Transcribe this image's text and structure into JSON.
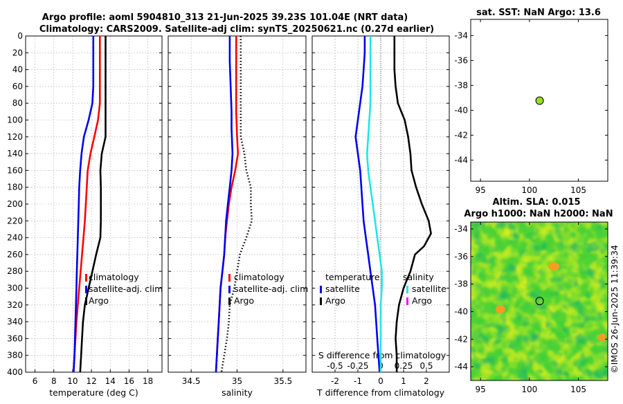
{
  "titles": {
    "line1": "Argo profile: aoml 5904810_313 21-Jun-2025 39.23S 101.04E (NRT data)",
    "line2": "Climatology: CARS2009. Satellite-adj clim: synTS_20250621.nc (0.27d earlier)",
    "sst": "sat. SST: NaN Argo: 13.6",
    "sla": "Altim. SLA: 0.015",
    "h": "Argo h1000: NaN h2000: NaN"
  },
  "credit": "©IMOS 26-Jun-2025 11:39:34",
  "colors": {
    "climatology": "#ff0000",
    "satellite": "#0000ee",
    "argo": "#000000",
    "sal_satellite": "#22e5e5",
    "sal_argo": "#ff00ff",
    "marker": "#99dd22"
  },
  "legend": {
    "climatology": "climatology",
    "satellite_adj": "satellite-adj. clim",
    "argo": "Argo",
    "diff_temp_header": "temperature",
    "diff_sal_header": "salinity",
    "satellite": "satellite",
    "argo2": "Argo"
  },
  "chart_data": [
    {
      "type": "line",
      "name": "temperature",
      "xlabel": "temperature (deg C)",
      "xlim": [
        5,
        19.5
      ],
      "xticks": [
        6,
        8,
        10,
        12,
        14,
        16,
        18
      ],
      "ylim": [
        0,
        400
      ],
      "yticks": [
        0,
        20,
        40,
        60,
        80,
        100,
        120,
        140,
        160,
        180,
        200,
        220,
        240,
        260,
        280,
        300,
        320,
        340,
        360,
        380,
        400
      ],
      "y_reversed": true,
      "grid": true,
      "series": [
        {
          "name": "climatology",
          "color": "#ff0000",
          "style": "solid",
          "points": [
            [
              12.9,
              0
            ],
            [
              12.9,
              20
            ],
            [
              12.9,
              40
            ],
            [
              12.9,
              60
            ],
            [
              12.9,
              80
            ],
            [
              12.7,
              100
            ],
            [
              12.3,
              120
            ],
            [
              11.9,
              140
            ],
            [
              11.6,
              160
            ],
            [
              11.5,
              180
            ],
            [
              11.4,
              200
            ],
            [
              11.3,
              220
            ],
            [
              11.15,
              240
            ],
            [
              11.0,
              260
            ],
            [
              10.85,
              280
            ],
            [
              10.7,
              300
            ],
            [
              10.55,
              320
            ],
            [
              10.4,
              340
            ],
            [
              10.3,
              360
            ],
            [
              10.2,
              380
            ],
            [
              10.1,
              400
            ]
          ]
        },
        {
          "name": "satellite-adj. clim",
          "color": "#0000ee",
          "style": "solid",
          "points": [
            [
              12.2,
              0
            ],
            [
              12.2,
              20
            ],
            [
              12.2,
              40
            ],
            [
              12.2,
              60
            ],
            [
              12.1,
              80
            ],
            [
              11.7,
              100
            ],
            [
              11.2,
              120
            ],
            [
              10.95,
              140
            ],
            [
              10.8,
              160
            ],
            [
              10.7,
              180
            ],
            [
              10.65,
              200
            ],
            [
              10.6,
              220
            ],
            [
              10.55,
              240
            ],
            [
              10.5,
              260
            ],
            [
              10.45,
              280
            ],
            [
              10.4,
              300
            ],
            [
              10.35,
              320
            ],
            [
              10.3,
              340
            ],
            [
              10.25,
              360
            ],
            [
              10.2,
              380
            ],
            [
              10.1,
              400
            ]
          ]
        },
        {
          "name": "Argo",
          "color": "#000000",
          "style": "solid",
          "points": [
            [
              13.5,
              0
            ],
            [
              13.5,
              20
            ],
            [
              13.5,
              40
            ],
            [
              13.5,
              60
            ],
            [
              13.5,
              80
            ],
            [
              13.5,
              100
            ],
            [
              13.5,
              120
            ],
            [
              13.1,
              140
            ],
            [
              12.95,
              160
            ],
            [
              13.0,
              180
            ],
            [
              13.0,
              200
            ],
            [
              13.0,
              220
            ],
            [
              12.95,
              240
            ],
            [
              12.5,
              260
            ],
            [
              12.1,
              280
            ],
            [
              11.7,
              300
            ],
            [
              11.3,
              320
            ],
            [
              11.1,
              340
            ],
            [
              11.0,
              360
            ],
            [
              10.9,
              380
            ],
            [
              10.8,
              400
            ]
          ]
        }
      ]
    },
    {
      "type": "line",
      "name": "salinity",
      "xlabel": "salinity",
      "xlim": [
        34.25,
        35.75
      ],
      "xticks": [
        34.5,
        35,
        35.5
      ],
      "ylim": [
        0,
        400
      ],
      "y_reversed": true,
      "grid": true,
      "series": [
        {
          "name": "climatology",
          "color": "#ff0000",
          "style": "solid",
          "points": [
            [
              34.99,
              0
            ],
            [
              34.99,
              30
            ],
            [
              34.99,
              60
            ],
            [
              34.99,
              90
            ],
            [
              35.0,
              120
            ],
            [
              35.01,
              140
            ],
            [
              34.98,
              160
            ],
            [
              34.94,
              180
            ],
            [
              34.91,
              200
            ],
            [
              34.89,
              220
            ],
            [
              34.87,
              240
            ],
            [
              34.86,
              260
            ],
            [
              34.84,
              280
            ],
            [
              34.82,
              300
            ],
            [
              34.81,
              320
            ],
            [
              34.8,
              340
            ],
            [
              34.79,
              360
            ],
            [
              34.78,
              380
            ],
            [
              34.77,
              400
            ]
          ]
        },
        {
          "name": "satellite-adj. clim",
          "color": "#0000ee",
          "style": "solid",
          "points": [
            [
              34.92,
              0
            ],
            [
              34.92,
              30
            ],
            [
              34.93,
              60
            ],
            [
              34.94,
              90
            ],
            [
              34.94,
              110
            ],
            [
              34.95,
              140
            ],
            [
              34.94,
              160
            ],
            [
              34.92,
              180
            ],
            [
              34.9,
              200
            ],
            [
              34.88,
              220
            ],
            [
              34.87,
              240
            ],
            [
              34.86,
              260
            ],
            [
              34.84,
              280
            ],
            [
              34.82,
              300
            ],
            [
              34.81,
              320
            ],
            [
              34.8,
              340
            ],
            [
              34.79,
              360
            ],
            [
              34.78,
              380
            ],
            [
              34.77,
              400
            ]
          ]
        },
        {
          "name": "Argo",
          "color": "#000000",
          "style": "dotted",
          "points": [
            [
              35.04,
              0
            ],
            [
              35.04,
              30
            ],
            [
              35.04,
              60
            ],
            [
              35.04,
              90
            ],
            [
              35.04,
              120
            ],
            [
              35.08,
              140
            ],
            [
              35.1,
              160
            ],
            [
              35.15,
              180
            ],
            [
              35.15,
              200
            ],
            [
              35.16,
              220
            ],
            [
              35.1,
              240
            ],
            [
              35.03,
              260
            ],
            [
              35.0,
              280
            ],
            [
              34.97,
              300
            ],
            [
              34.92,
              320
            ],
            [
              34.91,
              340
            ],
            [
              34.89,
              360
            ],
            [
              34.86,
              380
            ],
            [
              34.83,
              400
            ]
          ]
        }
      ]
    },
    {
      "type": "line",
      "name": "difference",
      "xlabel": "T difference from climatology",
      "xlabel_top": "S difference from climatology",
      "xlim": [
        -3,
        3
      ],
      "xticks": [
        -2,
        -1,
        0,
        1,
        2
      ],
      "top_ticks": [
        -0.5,
        -0.25,
        0,
        0.25,
        0.5
      ],
      "top_tick_labels": [
        "-0.5",
        "-0.25",
        "0",
        "0.25",
        "0.5"
      ],
      "ylim": [
        0,
        400
      ],
      "y_reversed": true,
      "grid": true,
      "series": [
        {
          "name": "temperature satellite",
          "color": "#0000ee",
          "style": "solid",
          "points": [
            [
              -0.7,
              0
            ],
            [
              -0.7,
              20
            ],
            [
              -0.75,
              40
            ],
            [
              -0.8,
              60
            ],
            [
              -0.9,
              80
            ],
            [
              -1.0,
              100
            ],
            [
              -1.1,
              120
            ],
            [
              -1.0,
              140
            ],
            [
              -0.9,
              160
            ],
            [
              -0.85,
              180
            ],
            [
              -0.8,
              200
            ],
            [
              -0.75,
              220
            ],
            [
              -0.65,
              240
            ],
            [
              -0.55,
              260
            ],
            [
              -0.45,
              280
            ],
            [
              -0.35,
              300
            ],
            [
              -0.25,
              320
            ],
            [
              -0.2,
              340
            ],
            [
              -0.15,
              360
            ],
            [
              -0.1,
              380
            ],
            [
              -0.05,
              400
            ]
          ]
        },
        {
          "name": "temperature Argo",
          "color": "#000000",
          "style": "solid",
          "points": [
            [
              0.6,
              0
            ],
            [
              0.6,
              20
            ],
            [
              0.6,
              40
            ],
            [
              0.65,
              60
            ],
            [
              0.75,
              80
            ],
            [
              1.05,
              100
            ],
            [
              1.2,
              120
            ],
            [
              1.3,
              140
            ],
            [
              1.35,
              160
            ],
            [
              1.55,
              180
            ],
            [
              1.8,
              200
            ],
            [
              2.1,
              220
            ],
            [
              2.2,
              235
            ],
            [
              1.9,
              250
            ],
            [
              1.5,
              260
            ],
            [
              1.3,
              280
            ],
            [
              1.0,
              300
            ],
            [
              0.8,
              320
            ],
            [
              0.7,
              340
            ],
            [
              0.65,
              360
            ],
            [
              0.7,
              380
            ],
            [
              0.7,
              400
            ]
          ]
        },
        {
          "name": "salinity satellite",
          "color": "#22e5e5",
          "style": "solid",
          "points": [
            [
              -0.45,
              0
            ],
            [
              -0.45,
              20
            ],
            [
              -0.45,
              40
            ],
            [
              -0.45,
              60
            ],
            [
              -0.45,
              80
            ],
            [
              -0.5,
              100
            ],
            [
              -0.55,
              120
            ],
            [
              -0.6,
              140
            ],
            [
              -0.55,
              160
            ],
            [
              -0.45,
              180
            ],
            [
              -0.35,
              200
            ],
            [
              -0.25,
              220
            ],
            [
              -0.15,
              240
            ],
            [
              -0.05,
              260
            ],
            [
              0.05,
              280
            ],
            [
              0.05,
              300
            ],
            [
              0.0,
              320
            ],
            [
              0.0,
              340
            ],
            [
              0.0,
              360
            ],
            [
              0.0,
              380
            ],
            [
              0.0,
              400
            ]
          ]
        }
      ]
    },
    {
      "type": "scatter",
      "name": "sst map",
      "title": "sat. SST: NaN Argo: 13.6",
      "xlim": [
        94,
        108
      ],
      "xticks": [
        95,
        100,
        105
      ],
      "ylim": [
        -45.7,
        -32.7
      ],
      "yticks": [
        -34,
        -36,
        -38,
        -40,
        -42,
        -44
      ],
      "points": [
        {
          "x": 101.04,
          "y": -39.23
        }
      ]
    },
    {
      "type": "heatmap",
      "name": "sla map",
      "title": "Altim. SLA: 0.015",
      "xlim": [
        94,
        108
      ],
      "xticks": [
        95,
        100,
        105
      ],
      "ylim": [
        -45,
        -33.5
      ],
      "yticks": [
        -34,
        -36,
        -38,
        -40,
        -42,
        -44
      ],
      "points": [
        {
          "x": 101.04,
          "y": -39.23
        }
      ]
    }
  ]
}
